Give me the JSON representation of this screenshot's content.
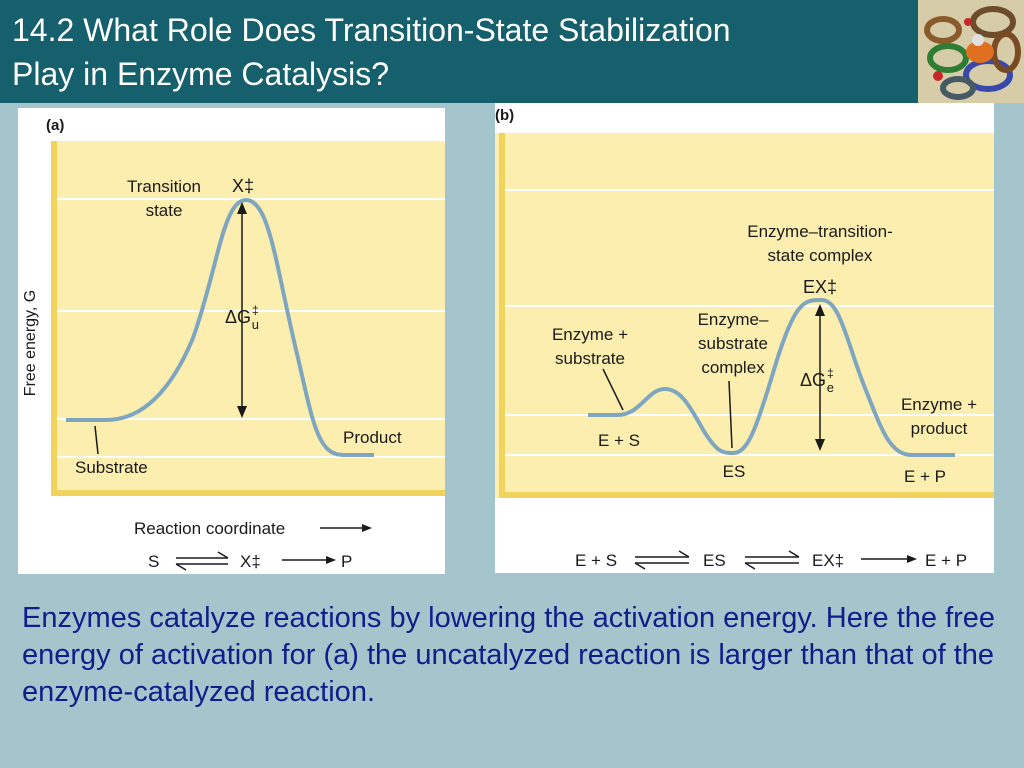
{
  "slide": {
    "title_line1": "14.2 What Role Does Transition-State Stabilization",
    "title_line2": "Play in Enzyme Catalysis?",
    "caption": "Enzymes catalyze reactions by lowering the activation energy. Here the free energy of activation for (a) the uncatalyzed reaction is larger than that of the enzyme-catalyzed reaction.",
    "logo_icon": "protein-structure-icon"
  },
  "panel_a": {
    "label": "(a)",
    "y_axis": "Free energy, G",
    "x_axis": "Reaction coordinate",
    "transition_state_line1": "Transition",
    "transition_state_line2": "state",
    "x_symbol": "X‡",
    "delta_g": "ΔG",
    "delta_g_sup": "‡",
    "delta_g_sub": "u",
    "product": "Product",
    "substrate": "Substrate",
    "eq_s": "S",
    "eq_x": "X‡",
    "eq_p": "P"
  },
  "panel_b": {
    "label": "(b)",
    "ets_line1": "Enzyme–transition-",
    "ets_line2": "state complex",
    "ex_symbol": "EX‡",
    "es_line1": "Enzyme–",
    "es_line2": "substrate",
    "es_line3": "complex",
    "esub_line1": "Enzyme +",
    "esub_line2": "substrate",
    "delta_g": "ΔG",
    "delta_g_sup": "‡",
    "delta_g_sub": "e",
    "eprod_line1": "Enzyme +",
    "eprod_line2": "product",
    "es_point": "E + S",
    "es_min": "ES",
    "ep_point": "E + P",
    "eq_1": "E + S",
    "eq_2": "ES",
    "eq_3": "EX‡",
    "eq_4": "E + P"
  },
  "colors": {
    "title_bg": "#15606c",
    "slide_bg": "#a5c5cc",
    "plot_bg": "#fbeeae",
    "axis": "#f0d35c",
    "curve": "#7fa6c0",
    "caption": "#0c1f8a"
  }
}
